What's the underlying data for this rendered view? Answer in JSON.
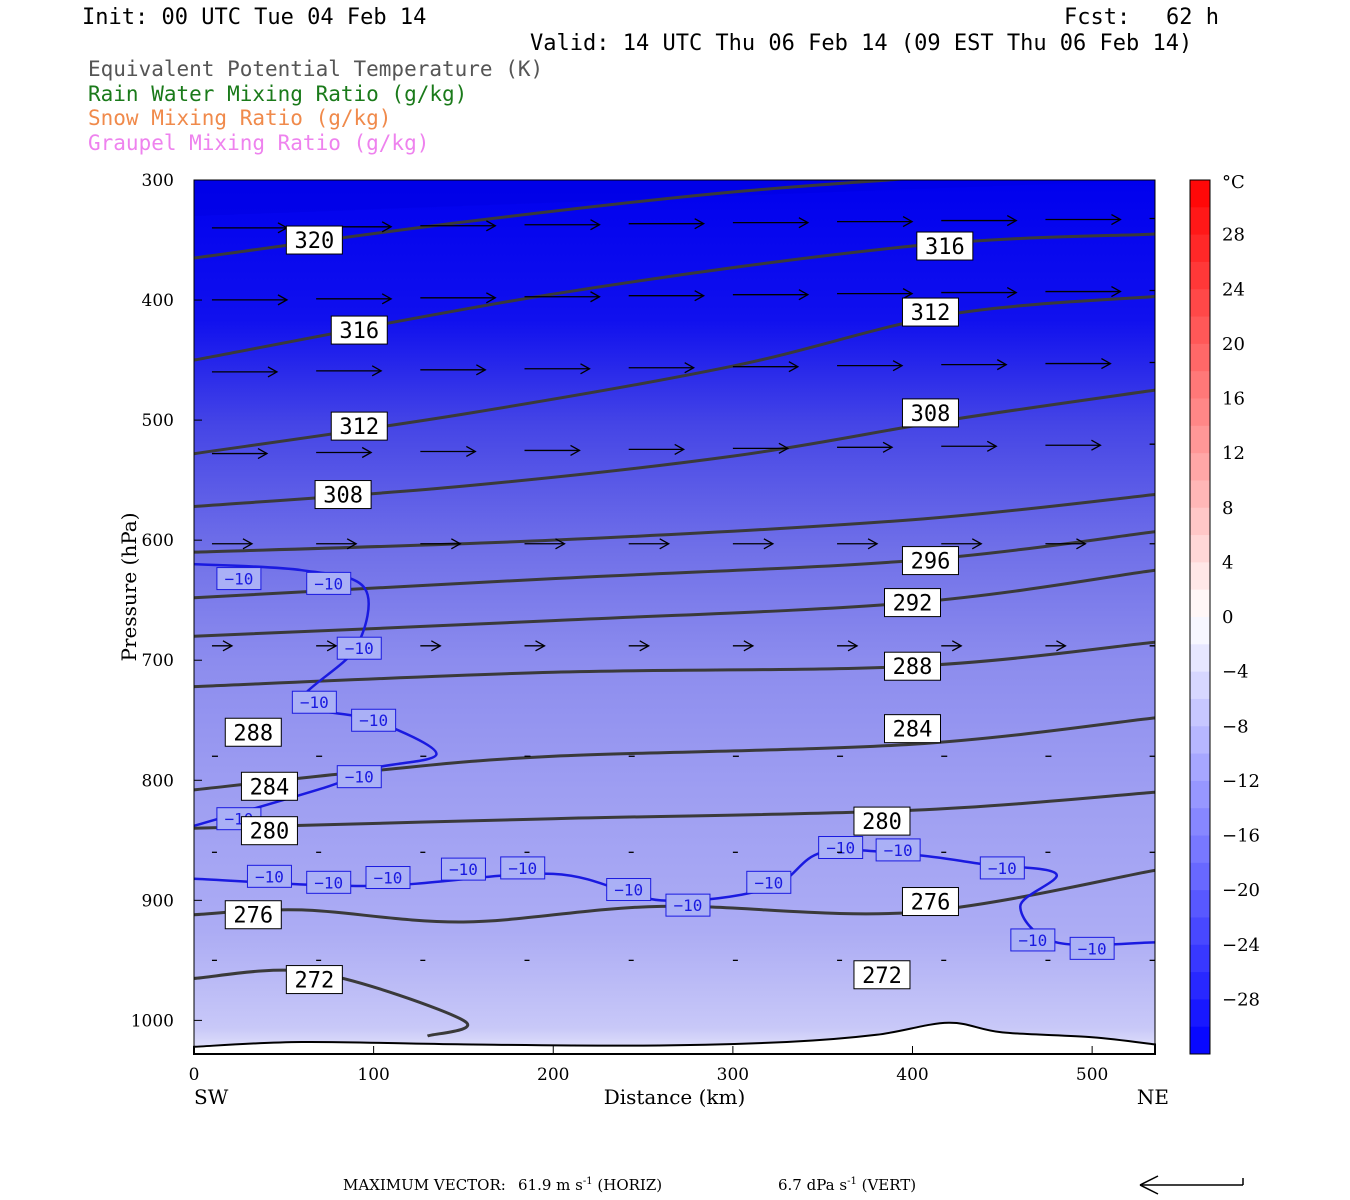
{
  "header": {
    "init": "Init: 00 UTC Tue 04 Feb 14",
    "fcst_label": "Fcst:",
    "fcst_value": "62 h",
    "valid": "Valid: 14 UTC Thu 06 Feb 14 (09 EST Thu 06 Feb 14)"
  },
  "legend": [
    {
      "label": "Equivalent Potential Temperature (K)",
      "color": "#555555"
    },
    {
      "label": "Rain Water Mixing Ratio (g/kg)",
      "color": "#1a7a1a"
    },
    {
      "label": "Snow Mixing Ratio (g/kg)",
      "color": "#f08a4b"
    },
    {
      "label": "Graupel Mixing Ratio (g/kg)",
      "color": "#ee82ee"
    }
  ],
  "chart_data": {
    "type": "cross-section",
    "xlabel": "Distance (km)",
    "ylabel": "Pressure (hPa)",
    "x_ticks": [
      0,
      100,
      200,
      300,
      400,
      500
    ],
    "y_ticks": [
      300,
      400,
      500,
      600,
      700,
      800,
      900,
      1000
    ],
    "xlim": [
      0,
      535
    ],
    "ylim": [
      1028,
      300
    ],
    "x_left_label": "SW",
    "x_right_label": "NE",
    "colorbar": {
      "unit": "°C",
      "tick_labels": [
        "28",
        "24",
        "20",
        "16",
        "12",
        "8",
        "4",
        "0",
        "−4",
        "−8",
        "−12",
        "−16",
        "−20",
        "−24",
        "−28"
      ],
      "tick_values": [
        28,
        24,
        20,
        16,
        12,
        8,
        4,
        0,
        -4,
        -8,
        -12,
        -16,
        -20,
        -24,
        -28
      ],
      "range": [
        -32,
        32
      ]
    },
    "theta_e_contours": [
      {
        "value": "320",
        "points": [
          [
            0,
            365
          ],
          [
            150,
            335
          ],
          [
            300,
            310
          ],
          [
            450,
            293
          ],
          [
            535,
            280
          ]
        ],
        "label_at": [
          67,
          350
        ]
      },
      {
        "value": "316",
        "points": [
          [
            0,
            450
          ],
          [
            200,
            395
          ],
          [
            400,
            355
          ],
          [
            535,
            345
          ]
        ],
        "labels_at": [
          [
            92,
            425
          ],
          [
            418,
            355
          ]
        ]
      },
      {
        "value": "312",
        "points": [
          [
            0,
            528
          ],
          [
            150,
            495
          ],
          [
            300,
            455
          ],
          [
            420,
            412
          ],
          [
            535,
            397
          ]
        ],
        "labels_at": [
          [
            92,
            505
          ],
          [
            410,
            410
          ]
        ]
      },
      {
        "value": "308",
        "points": [
          [
            0,
            572
          ],
          [
            150,
            555
          ],
          [
            300,
            530
          ],
          [
            420,
            500
          ],
          [
            535,
            475
          ]
        ],
        "labels_at": [
          [
            83,
            562
          ],
          [
            410,
            494
          ]
        ]
      },
      {
        "value": "296",
        "points": [
          [
            0,
            610
          ],
          [
            200,
            600
          ],
          [
            400,
            583
          ],
          [
            535,
            562
          ]
        ]
      },
      {
        "value": "296",
        "points": [
          [
            0,
            648
          ],
          [
            200,
            632
          ],
          [
            400,
            617
          ],
          [
            535,
            593
          ]
        ],
        "label_at": [
          410,
          617
        ]
      },
      {
        "value": "292",
        "points": [
          [
            0,
            680
          ],
          [
            200,
            667
          ],
          [
            400,
            652
          ],
          [
            535,
            625
          ]
        ],
        "label_at": [
          400,
          652
        ]
      },
      {
        "value": "288",
        "points": [
          [
            0,
            722
          ],
          [
            200,
            710
          ],
          [
            400,
            705
          ],
          [
            535,
            685
          ]
        ],
        "labels_at": [
          [
            33,
            760
          ],
          [
            400,
            705
          ]
        ]
      },
      {
        "value": "284",
        "points": [
          [
            0,
            808
          ],
          [
            100,
            792
          ],
          [
            200,
            780
          ],
          [
            400,
            770
          ],
          [
            535,
            748
          ]
        ],
        "labels_at": [
          [
            42,
            805
          ],
          [
            400,
            757
          ]
        ]
      },
      {
        "value": "280",
        "points": [
          [
            0,
            840
          ],
          [
            200,
            832
          ],
          [
            400,
            825
          ],
          [
            535,
            810
          ]
        ],
        "labels_at": [
          [
            42,
            842
          ],
          [
            383,
            834
          ]
        ]
      },
      {
        "value": "276",
        "points": [
          [
            0,
            912
          ],
          [
            60,
            908
          ],
          [
            150,
            918
          ],
          [
            260,
            905
          ],
          [
            400,
            910
          ],
          [
            535,
            875
          ]
        ],
        "labels_at": [
          [
            33,
            912
          ],
          [
            410,
            901
          ]
        ]
      },
      {
        "value": "272",
        "points": [
          [
            0,
            965
          ],
          [
            67,
            960
          ],
          [
            150,
            1000
          ],
          [
            130,
            1013
          ]
        ],
        "labels_at": [
          [
            67,
            966
          ],
          [
            383,
            962
          ]
        ]
      }
    ],
    "temperature_minus10_label": "−10",
    "max_vector": {
      "label": "MAXIMUM VECTOR:",
      "horiz": "61.9 m s",
      "horiz_sup": "-1",
      "horiz_tail": "(HORIZ)",
      "vert": "6.7 dPa s",
      "vert_sup": "-1",
      "vert_tail": "(VERT)"
    }
  }
}
